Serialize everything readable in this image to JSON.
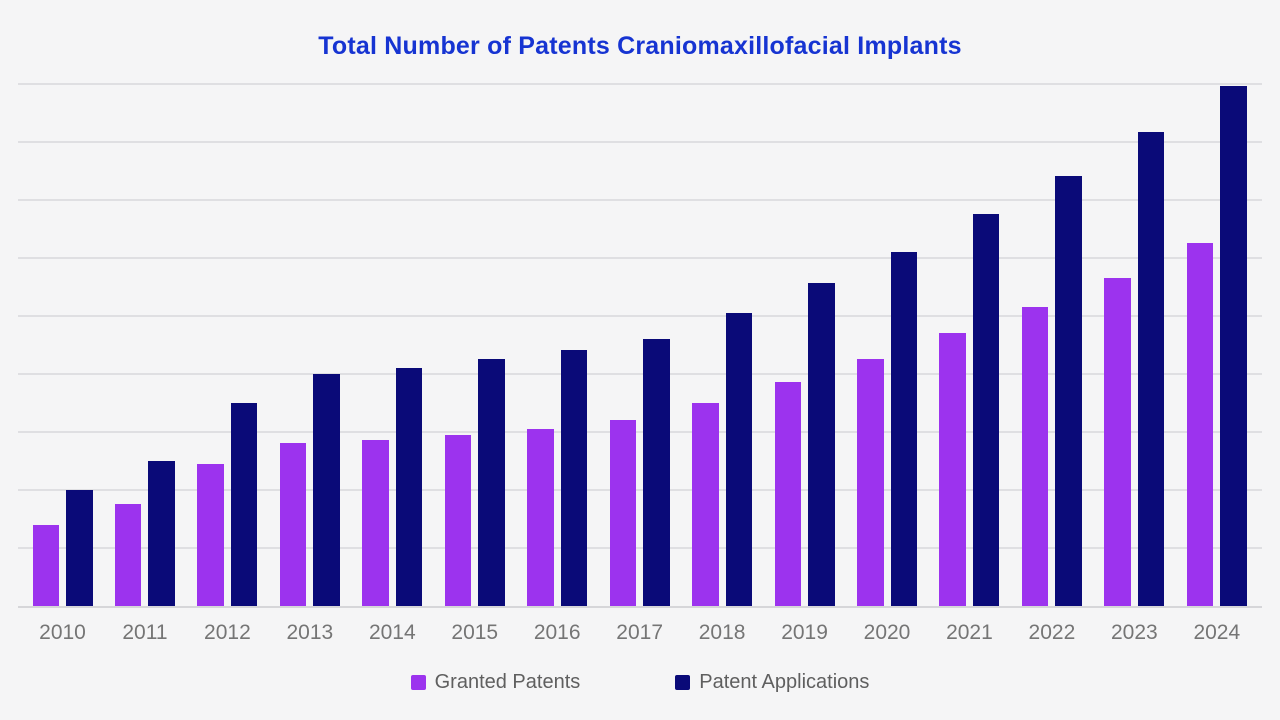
{
  "title": "Total Number of Patents Craniomaxillofacial Implants",
  "colors": {
    "background": "#f5f5f6",
    "title": "#1634d2",
    "gridline": "#dfdfe2",
    "axis_line": "#d6d6d9",
    "x_label": "#757575",
    "legend_text": "#5f5f5f",
    "granted": "#9C33EE",
    "applications": "#0A0A78"
  },
  "legend": {
    "items": [
      {
        "label": "Granted Patents",
        "color_key": "granted"
      },
      {
        "label": "Patent Applications",
        "color_key": "applications"
      }
    ]
  },
  "chart_data": {
    "type": "bar",
    "title": "Total Number of Patents Craniomaxillofacial Implants",
    "categories": [
      "2010",
      "2011",
      "2012",
      "2013",
      "2014",
      "2015",
      "2016",
      "2017",
      "2018",
      "2019",
      "2020",
      "2021",
      "2022",
      "2023",
      "2024"
    ],
    "series": [
      {
        "name": "Granted Patents",
        "color": "#9C33EE",
        "values": [
          140,
          175,
          245,
          280,
          285,
          295,
          305,
          320,
          350,
          385,
          425,
          470,
          515,
          565,
          625
        ]
      },
      {
        "name": "Patent Applications",
        "color": "#0A0A78",
        "values": [
          200,
          250,
          350,
          400,
          410,
          425,
          440,
          460,
          505,
          555,
          610,
          675,
          740,
          815,
          895
        ]
      }
    ],
    "xlabel": "",
    "ylabel": "",
    "ylim": [
      0,
      900
    ],
    "y_axis_labels_visible": false,
    "grid": "horizontal",
    "legend_position": "bottom"
  }
}
